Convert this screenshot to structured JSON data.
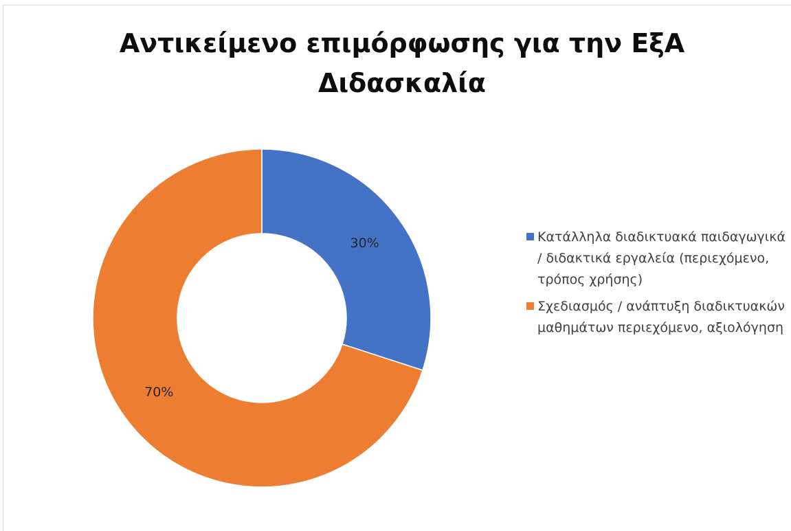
{
  "colors": {
    "series_1": "#4472c4",
    "series_2": "#ed7d31"
  },
  "chart_data": {
    "type": "pie",
    "variant": "donut",
    "title": "Αντικείμενο επιμόρφωσης για την ΕξΑ\nΔιδασκαλία",
    "legend_position": "right",
    "slices": [
      {
        "label": "Κατάλληλα διαδικτυακά παιδαγωγικά / διδακτικά εργαλεία (περιεχόμενο, τρόπος χρήσης)",
        "value": 30,
        "display": "30%",
        "color": "#4472c4"
      },
      {
        "label": "Σχεδιασμός / ανάπτυξη διαδικτυακών μαθημάτων περιεχόμενο, αξιολόγηση",
        "value": 70,
        "display": "70%",
        "color": "#ed7d31"
      }
    ]
  }
}
